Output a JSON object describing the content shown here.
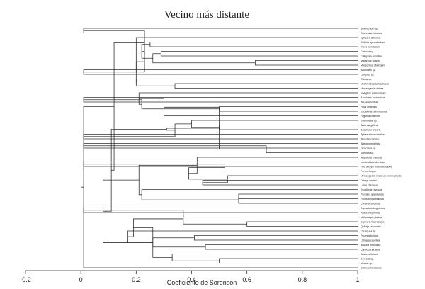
{
  "chart_data": {
    "type": "dendrogram",
    "title": "Vecino más distante",
    "xlabel": "Coeficiente de Sorenson",
    "xlim": [
      -0.2,
      1
    ],
    "xticks": [
      "-0.2",
      "0",
      "0.2",
      "0.4",
      "0.6",
      "0.8",
      "1"
    ],
    "leaves": [
      "Saxinichium sp.",
      "Gochnatia foliolosa",
      "Ephedra chilensis",
      "Colletia spinosissima",
      "Ribes punctatum",
      "Cuscuta sp.",
      "Colliguaja odorifera",
      "Maytenus boaria",
      "Myoschilos oblongum",
      "Baccharis sp.",
      "Lathyrus sp.",
      "Rubus sp.",
      "Muehlenbeckia hastulata",
      "Myrceugenia obtusa",
      "Eryngium paniculatum",
      "Baccharis rosmarinus",
      "Tessaria linifolia",
      "Puya chilensis",
      "Escallonia pulverulenta",
      "Fagonia chilensis",
      "Gramineae sp.",
      "Satureja gilliesii",
      "Baccharis linearis",
      "Sphaeralcea velutina",
      "Teucrium bicolor",
      "Alstroemeria ligtu",
      "Dioscorea sp.",
      "Schinus sp.",
      "Aristotelia chilensis",
      "Lardizabala biternata",
      "Hydrocotyle marchantioides",
      "Persea lingue",
      "Myrceugenia ovata var. nannophylla",
      "Drimys winteri",
      "Luma chequen",
      "Escallonia revoluta",
      "Psoralea glandulosa",
      "Fuchsia magellanica",
      "Coriaria ruscifolia",
      "Equisetum bogotense",
      "Azara integrifolia",
      "Nothofagus glauca",
      "Sophora macrocarpa",
      "Quillaja saponaria",
      "Chusquea sp.",
      "Peumus boldus",
      "Lithraea caustica",
      "Boquila trifoliolata",
      "Cryptocarya alba",
      "Azara petiolaris",
      "Berberis sp.",
      "Mutisia sp.",
      "Schinus montanus"
    ],
    "merges": [
      [
        0,
        1,
        0.01
      ],
      [
        3,
        4,
        0.25
      ],
      [
        5,
        6,
        0.29
      ],
      [
        7,
        8,
        0.63
      ],
      [
        -3,
        -4,
        0.26
      ],
      [
        -2,
        -5,
        0.22
      ],
      [
        9,
        10,
        0.01
      ],
      [
        -6,
        -7,
        0.23
      ],
      [
        12,
        13,
        0.34
      ],
      [
        11,
        -9,
        0.2
      ],
      [
        -8,
        -10,
        0.2
      ],
      [
        2,
        -11,
        0.2
      ],
      [
        -1,
        -12,
        0.23
      ],
      [
        15,
        16,
        0.01
      ],
      [
        17,
        18,
        0.5
      ],
      [
        -14,
        -15,
        0.22
      ],
      [
        14,
        -16,
        0.21
      ],
      [
        21,
        22,
        0.5
      ],
      [
        20,
        -18,
        0.4
      ],
      [
        23,
        24,
        0.01
      ],
      [
        -19,
        -20,
        0.34
      ],
      [
        19,
        -17,
        0.3
      ],
      [
        25,
        26,
        0.01
      ],
      [
        -23,
        27,
        0.67
      ],
      [
        -22,
        -24,
        0.5
      ],
      [
        -21,
        -25,
        0.31
      ],
      [
        29,
        30,
        0.01
      ],
      [
        -27,
        31,
        0.52
      ],
      [
        33,
        34,
        0.44
      ],
      [
        32,
        -29,
        0.53
      ],
      [
        -28,
        -30,
        0.39
      ],
      [
        28,
        -31,
        0.42
      ],
      [
        36,
        37,
        0.57
      ],
      [
        -33,
        38,
        0.57
      ],
      [
        35,
        -34,
        0.22
      ],
      [
        -32,
        -35,
        0.21
      ],
      [
        39,
        40,
        0.01
      ],
      [
        -37,
        41,
        0.37
      ],
      [
        42,
        43,
        0.6
      ],
      [
        -38,
        -39,
        0.37
      ],
      [
        45,
        46,
        0.41
      ],
      [
        47,
        48,
        0.45
      ],
      [
        -41,
        -42,
        0.26
      ],
      [
        44,
        -43,
        0.17
      ],
      [
        50,
        51,
        0.5
      ],
      [
        49,
        -45,
        0.33
      ],
      [
        -40,
        -44,
        0.19
      ],
      [
        -46,
        -47,
        0.26
      ],
      [
        -48,
        -36,
        0.08
      ],
      [
        -26,
        -49,
        0.11
      ],
      [
        -13,
        -50,
        0.12
      ],
      [
        52,
        -51,
        0.01
      ]
    ]
  }
}
